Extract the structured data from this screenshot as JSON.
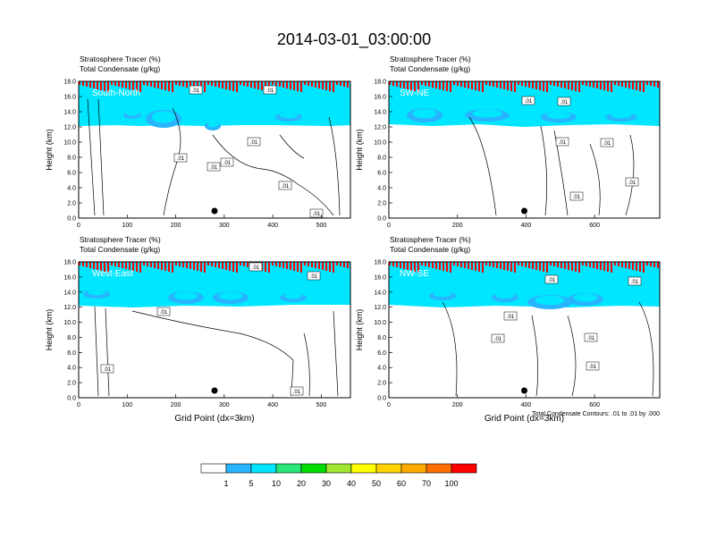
{
  "figure": {
    "title": "2014-03-01_03:00:00",
    "contour_note": "Total Condensate Contours: .01 to .01 by .000"
  },
  "colorbar": {
    "levels": [
      "1",
      "5",
      "10",
      "20",
      "30",
      "40",
      "50",
      "60",
      "70",
      "100"
    ],
    "colors": [
      "#ffffff",
      "#1e8cff",
      "#28b4ff",
      "#00e6ff",
      "#28e678",
      "#00dc00",
      "#a0e632",
      "#ffff00",
      "#ffd200",
      "#ffaa00",
      "#ff6e00",
      "#ff0000"
    ]
  },
  "chart_data": [
    {
      "type": "heatmap",
      "panel": "South-North",
      "subtitle_line1": "Stratosphere Tracer   (%)",
      "subtitle_line2": "Total Condensate   (g/kg)",
      "ylabel": "Height (km)",
      "xlabel": "",
      "xlim": [
        0,
        560
      ],
      "ylim": [
        0,
        18
      ],
      "xticks": [
        "0",
        "100",
        "200",
        "300",
        "400",
        "500"
      ],
      "yticks": [
        "0.0",
        "2.0",
        "4.0",
        "6.0",
        "8.0",
        "10.0",
        "12.0",
        "14.0",
        "16.0",
        "18.0"
      ],
      "contour_labels": [
        ".01",
        ".01",
        ".01",
        ".01",
        ".01",
        ".01",
        ".01",
        ".01"
      ],
      "marker_x": 280
    },
    {
      "type": "heatmap",
      "panel": "SW-NE",
      "subtitle_line1": "Stratosphere Tracer   (%)",
      "subtitle_line2": "Total Condensate   (g/kg)",
      "ylabel": "Height (km)",
      "xlabel": "",
      "xlim": [
        0,
        790
      ],
      "ylim": [
        0,
        18
      ],
      "xticks": [
        "0",
        "200",
        "400",
        "600"
      ],
      "yticks": [
        "0.0",
        "2.0",
        "4.0",
        "6.0",
        "8.0",
        "10.0",
        "12.0",
        "14.0",
        "16.0",
        "18.0"
      ],
      "contour_labels": [
        ".01",
        ".01",
        ".01",
        ".01",
        ".01",
        ".01"
      ],
      "marker_x": 395
    },
    {
      "type": "heatmap",
      "panel": "West-East",
      "subtitle_line1": "Stratosphere Tracer   (%)",
      "subtitle_line2": "Total Condensate   (g/kg)",
      "ylabel": "Height (km)",
      "xlabel": "Grid Point (dx=3km)",
      "xlim": [
        0,
        560
      ],
      "ylim": [
        0,
        18
      ],
      "xticks": [
        "0",
        "100",
        "200",
        "300",
        "400",
        "500"
      ],
      "yticks": [
        "0.0",
        "2.0",
        "4.0",
        "6.0",
        "8.0",
        "10.0",
        "12.0",
        "14.0",
        "16.0",
        "18.0"
      ],
      "contour_labels": [
        ".01",
        ".01",
        ".01",
        ".01",
        ".01"
      ],
      "marker_x": 280
    },
    {
      "type": "heatmap",
      "panel": "NW-SE",
      "subtitle_line1": "Stratosphere Tracer   (%)",
      "subtitle_line2": "Total Condensate   (g/kg)",
      "ylabel": "Height (km)",
      "xlabel": "Grid Point (dx=3km)",
      "xlim": [
        0,
        790
      ],
      "ylim": [
        0,
        18
      ],
      "xticks": [
        "0",
        "200",
        "400",
        "600"
      ],
      "yticks": [
        "0.0",
        "2.0",
        "4.0",
        "6.0",
        "8.0",
        "10.0",
        "12.0",
        "14.0",
        "16.0",
        "18.0"
      ],
      "contour_labels": [
        ".01",
        ".01",
        ".01",
        ".01",
        ".01",
        ".01"
      ],
      "marker_x": 395
    }
  ]
}
